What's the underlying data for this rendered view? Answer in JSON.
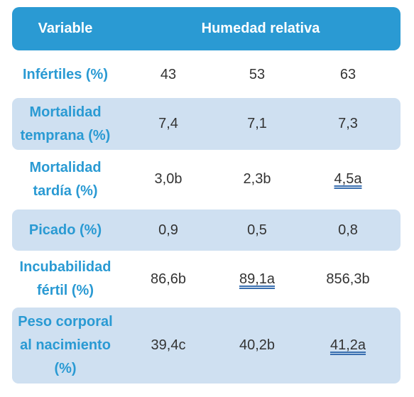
{
  "header": {
    "variable": "Variable",
    "group": "Humedad relativa"
  },
  "table": {
    "rows": [
      [
        "Infértiles (%)",
        "43",
        "53",
        "63"
      ],
      [
        "Mortalidad temprana (%)",
        "7,4",
        "7,1",
        "7,3"
      ],
      [
        "Mortalidad tardía (%)",
        "3,0b",
        "2,3b",
        "4,5a"
      ],
      [
        "Picado (%)",
        "0,9",
        "0,5",
        "0,8"
      ],
      [
        "Incubabilidad fértil (%)",
        "86,6b",
        "89,1a",
        "856,3b"
      ],
      [
        "Peso corporal al nacimiento (%)",
        "39,4c",
        "40,2b",
        "41,2a"
      ]
    ]
  }
}
